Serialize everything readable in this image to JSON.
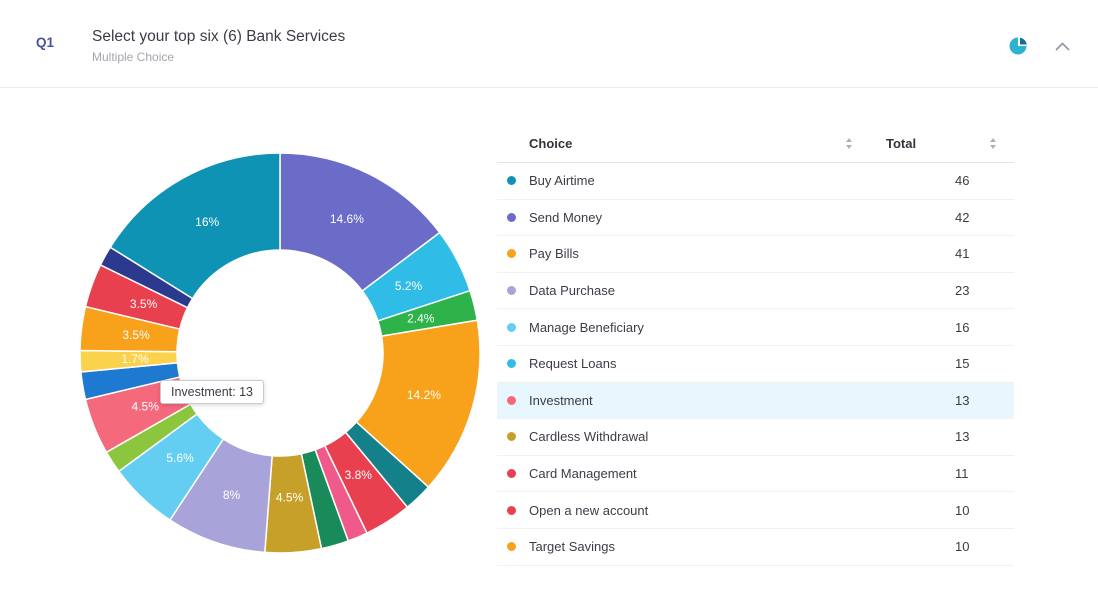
{
  "header": {
    "question_number": "Q1",
    "title": "Select your top six (6) Bank Services",
    "subtitle": "Multiple Choice"
  },
  "icons": {
    "pie_chart_icon": {
      "name": "pie-chart-icon",
      "color": "#2bb3cf",
      "wedge_color": "#166e96"
    },
    "chevron_up_icon": {
      "name": "chevron-up-icon",
      "color": "#949aa6"
    },
    "sort_icon_color": "#aab2bf"
  },
  "table": {
    "columns": [
      "Choice",
      "Total"
    ],
    "rows": [
      {
        "label": "Buy Airtime",
        "total": 46,
        "color": "#0e93b5"
      },
      {
        "label": "Send Money",
        "total": 42,
        "color": "#6b6bc8"
      },
      {
        "label": "Pay Bills",
        "total": 41,
        "color": "#f8a11b"
      },
      {
        "label": "Data Purchase",
        "total": 23,
        "color": "#a8a4d9"
      },
      {
        "label": "Manage Beneficiary",
        "total": 16,
        "color": "#63cdf2"
      },
      {
        "label": "Request Loans",
        "total": 15,
        "color": "#2fbde8"
      },
      {
        "label": "Investment",
        "total": 13,
        "color": "#f4697c",
        "highlighted": true
      },
      {
        "label": "Cardless Withdrawal",
        "total": 13,
        "color": "#c7a02a"
      },
      {
        "label": "Card Management",
        "total": 11,
        "color": "#e8404f"
      },
      {
        "label": "Open a new account",
        "total": 10,
        "color": "#e8404f"
      },
      {
        "label": "Target Savings",
        "total": 10,
        "color": "#f8a11b"
      }
    ]
  },
  "chart_data": {
    "type": "pie",
    "subtype": "donut",
    "unit": "percent",
    "start": "top-clockwise",
    "hole_ratio": 0.51,
    "tooltip": "Investment: 13",
    "segments": [
      {
        "label": "14.6%",
        "value": 14.6,
        "color": "#6b6bc8"
      },
      {
        "label": "5.2%",
        "value": 5.2,
        "color": "#2fbde8"
      },
      {
        "label": "2.4%",
        "value": 2.4,
        "color": "#2eb34b"
      },
      {
        "label": "14.2%",
        "value": 14.2,
        "color": "#f8a11b"
      },
      {
        "label": "",
        "value": 2.3,
        "color": "#14808a"
      },
      {
        "label": "3.8%",
        "value": 3.8,
        "color": "#e8404f"
      },
      {
        "label": "",
        "value": 1.6,
        "color": "#ef5a8a"
      },
      {
        "label": "",
        "value": 2.2,
        "color": "#198a5a"
      },
      {
        "label": "4.5%",
        "value": 4.5,
        "color": "#c7a02a"
      },
      {
        "label": "8%",
        "value": 8,
        "color": "#a8a4d9"
      },
      {
        "label": "5.6%",
        "value": 5.6,
        "color": "#63cdf2"
      },
      {
        "label": "",
        "value": 1.8,
        "color": "#8cc63e"
      },
      {
        "label": "4.5%",
        "value": 4.5,
        "color": "#f4697c"
      },
      {
        "label": "",
        "value": 2.2,
        "color": "#1e7ad1"
      },
      {
        "label": "1.7%",
        "value": 1.7,
        "color": "#fbd24b"
      },
      {
        "label": "3.5%",
        "value": 3.5,
        "color": "#f8a11b"
      },
      {
        "label": "3.5%",
        "value": 3.5,
        "color": "#e8404f"
      },
      {
        "label": "",
        "value": 1.6,
        "color": "#2b3a8f"
      },
      {
        "label": "16%",
        "value": 16,
        "color": "#0e93b5"
      }
    ]
  }
}
